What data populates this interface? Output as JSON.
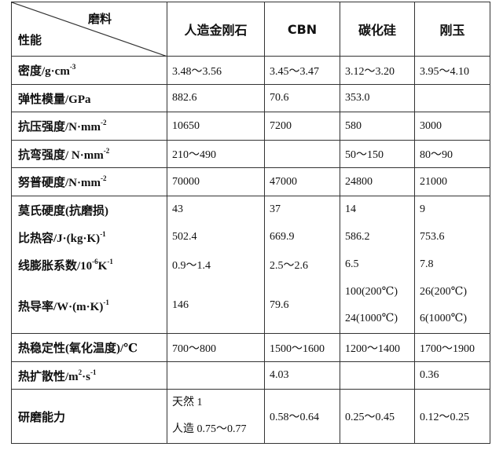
{
  "header": {
    "corner_top": "磨料",
    "corner_bottom": "性能",
    "columns": [
      "人造金刚石",
      "CBN",
      "碳化硅",
      "刚玉"
    ]
  },
  "rows": [
    {
      "label": [
        {
          "t": "密度/g·cm"
        },
        {
          "sup": "-3"
        }
      ],
      "values": [
        [
          "3.48～3.56"
        ],
        [
          "3.45～3.47"
        ],
        [
          "3.12～3.20"
        ],
        [
          "3.95～4.10"
        ]
      ]
    },
    {
      "label": [
        {
          "t": "弹性模量/GPa"
        }
      ],
      "values": [
        [
          "882.6"
        ],
        [
          "70.6"
        ],
        [
          "353.0"
        ],
        []
      ]
    },
    {
      "label": [
        {
          "t": "抗压强度/N·mm"
        },
        {
          "sup": "-2"
        }
      ],
      "values": [
        [
          "10650"
        ],
        [
          "7200"
        ],
        [
          "580"
        ],
        [
          "3000"
        ]
      ]
    },
    {
      "label": [
        {
          "t": "抗弯强度/ N·mm"
        },
        {
          "sup": "-2"
        }
      ],
      "values": [
        [
          "210～490"
        ],
        [],
        [
          "50～150"
        ],
        [
          "80～90"
        ]
      ]
    },
    {
      "label": [
        {
          "t": "努普硬度/N·mm"
        },
        {
          "sup": "-2"
        }
      ],
      "values": [
        [
          "70000"
        ],
        [
          "47000"
        ],
        [
          "24800"
        ],
        [
          "21000"
        ]
      ]
    },
    {
      "label": [
        {
          "t": "莫氏硬度(抗磨损)"
        }
      ],
      "values": [
        [
          "43"
        ],
        [
          "37"
        ],
        [
          "14"
        ],
        [
          "9"
        ]
      ]
    },
    {
      "label": [
        {
          "t": "比热容/J·(kg·K)"
        },
        {
          "sup": "-1"
        }
      ],
      "values": [
        [
          "502.4"
        ],
        [
          "669.9"
        ],
        [
          "586.2"
        ],
        [
          "753.6"
        ]
      ]
    },
    {
      "label": [
        {
          "t": "线膨胀系数/10"
        },
        {
          "sup": "-6"
        },
        {
          "t": "K"
        },
        {
          "sup": "-1"
        }
      ],
      "values": [
        [
          "0.9～1.4"
        ],
        [
          "2.5～2.6"
        ],
        [
          "6.5"
        ],
        [
          "7.8"
        ]
      ]
    },
    {
      "label": [
        {
          "t": "热导率/W·(m·K)"
        },
        {
          "sup": "-1"
        }
      ],
      "values": [
        [
          "146"
        ],
        [
          "79.6"
        ],
        [
          "100(200℃)",
          "24(1000℃)"
        ],
        [
          "26(200℃)",
          "6(1000℃)"
        ]
      ]
    },
    {
      "label": [
        {
          "t": "热稳定性(氧化温度)/℃"
        }
      ],
      "values": [
        [
          "700～800"
        ],
        [
          "1500～1600"
        ],
        [
          "1200～1400"
        ],
        [
          "1700～1900"
        ]
      ]
    },
    {
      "label": [
        {
          "t": "热扩散性/m"
        },
        {
          "sup": "2"
        },
        {
          "t": "·s"
        },
        {
          "sup": "-1"
        }
      ],
      "values": [
        [],
        [
          "4.03"
        ],
        [],
        [
          "0.36"
        ]
      ]
    },
    {
      "label": [
        {
          "t": "研磨能力"
        }
      ],
      "values": [
        [
          "天然 1",
          "人造 0.75～0.77"
        ],
        [
          "0.58～0.64"
        ],
        [
          "0.25～0.45"
        ],
        [
          "0.12～0.25"
        ]
      ]
    }
  ]
}
